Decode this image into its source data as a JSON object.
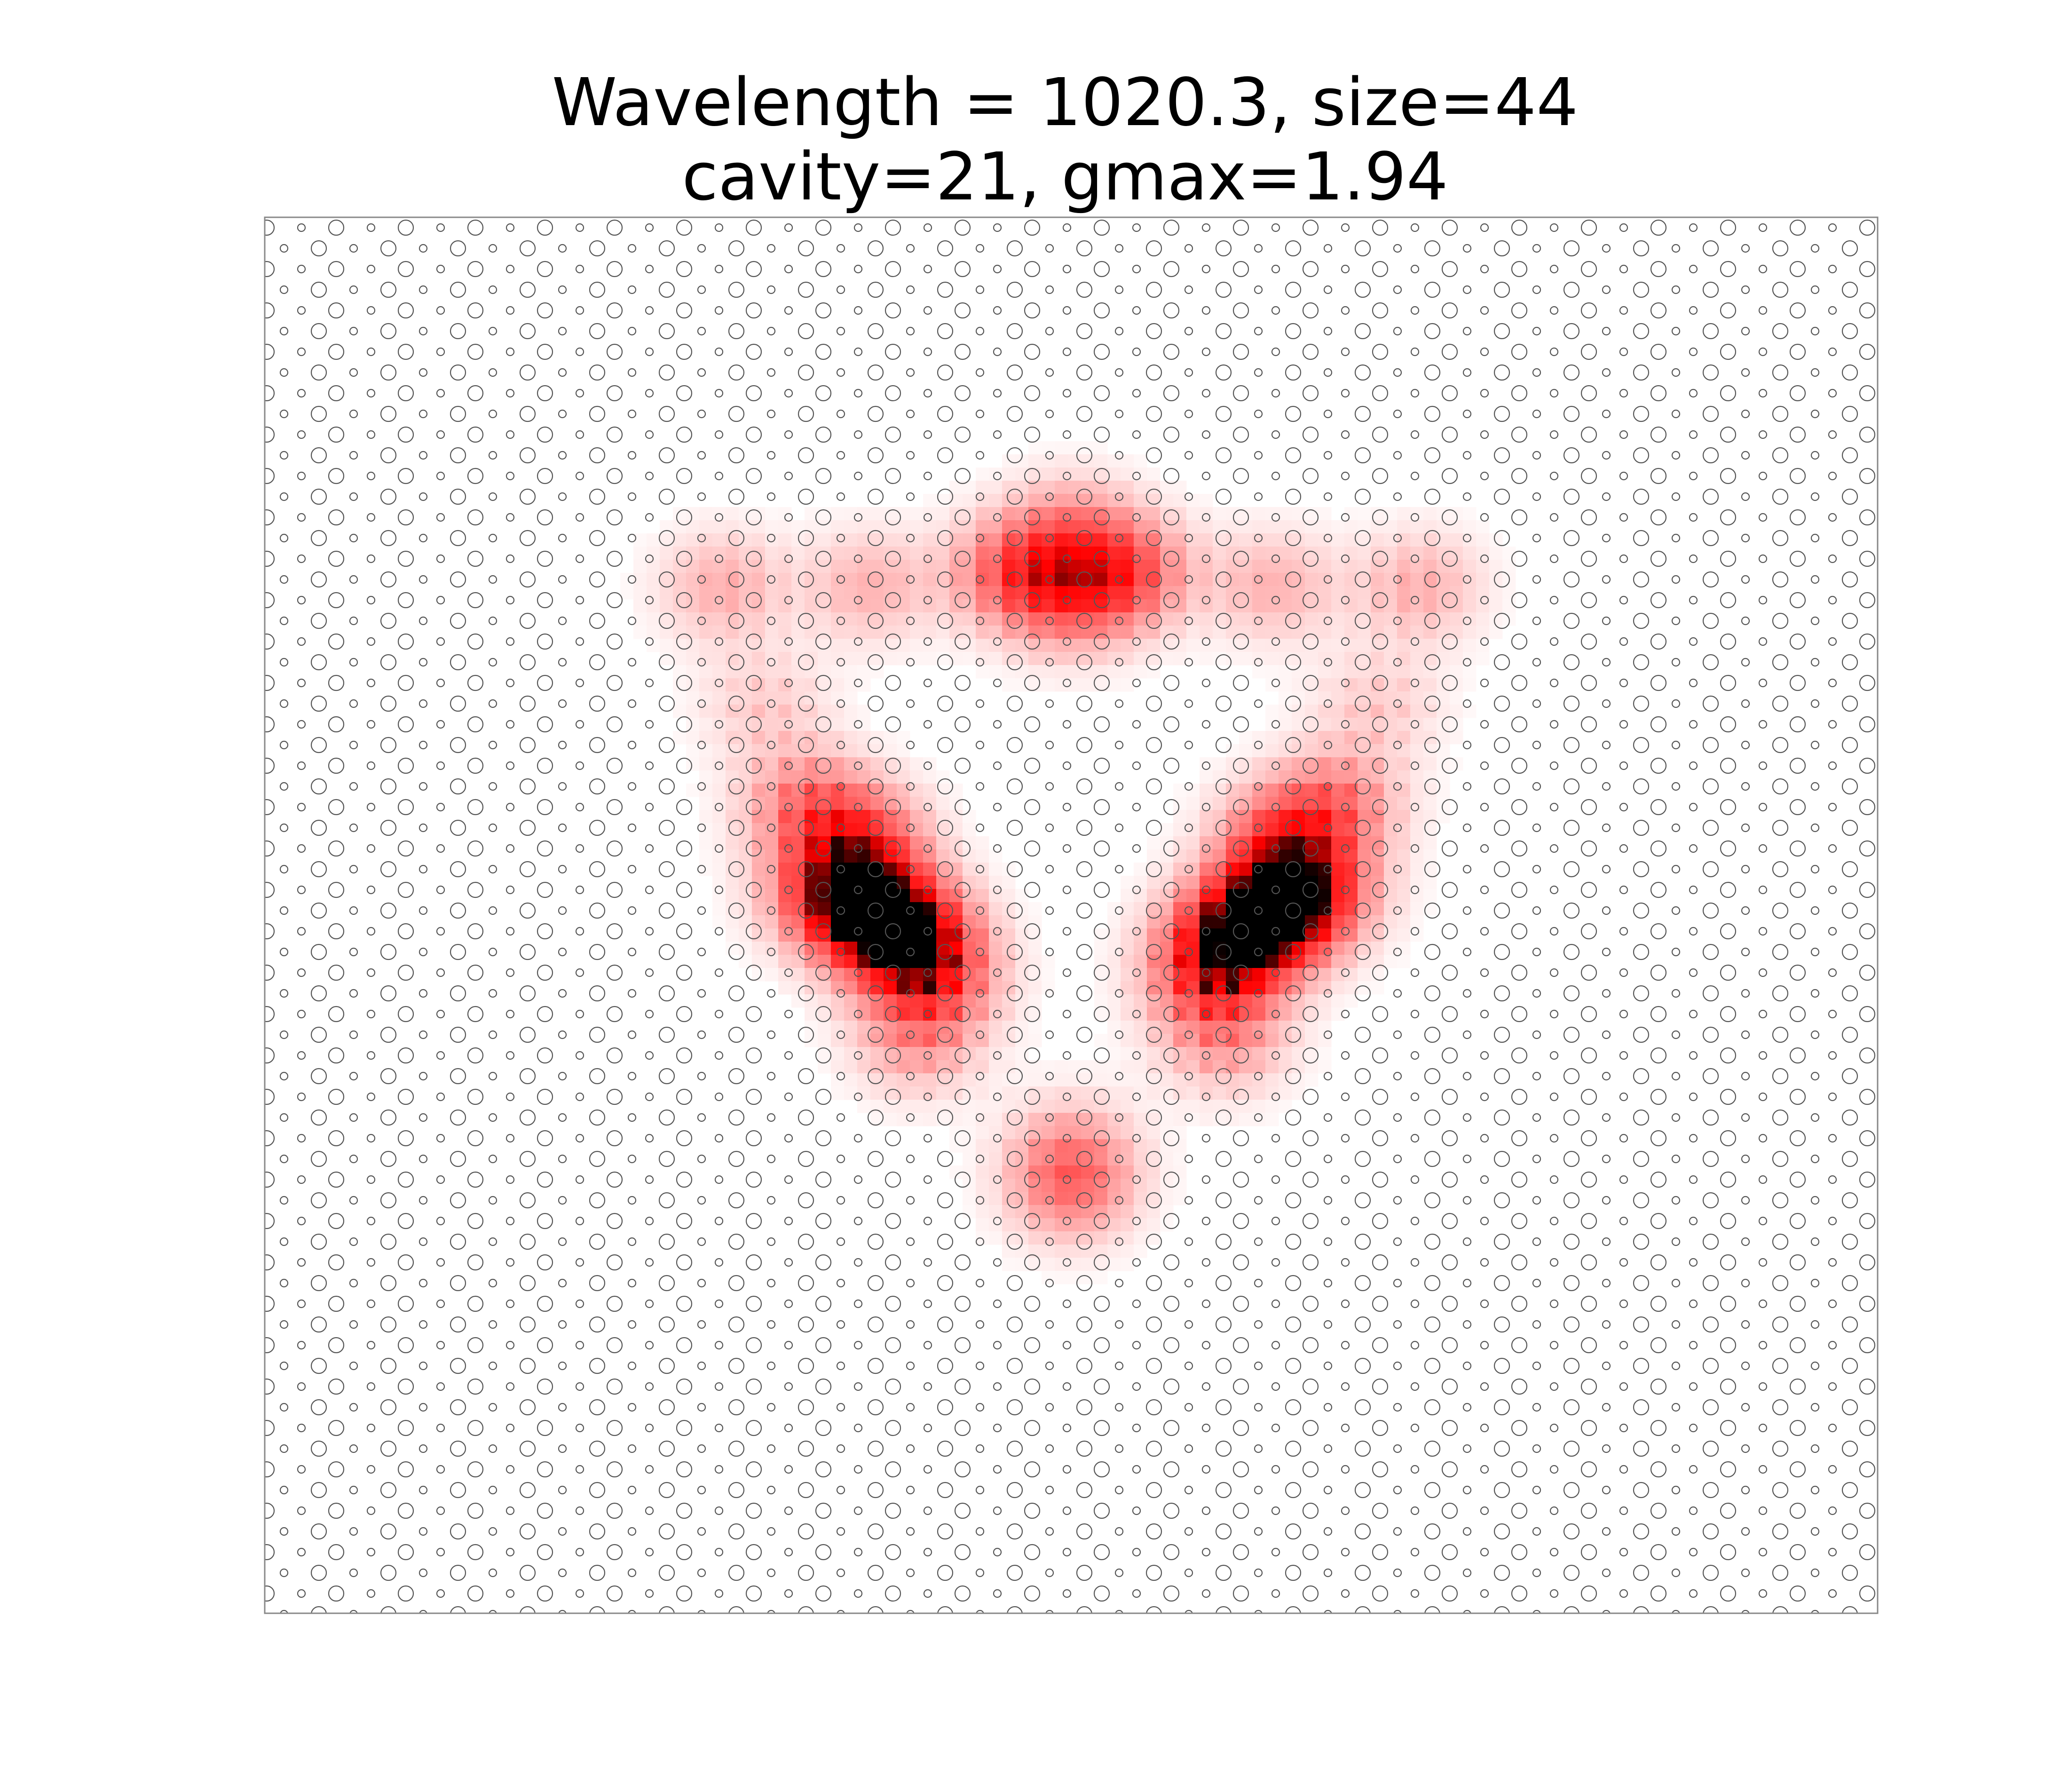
{
  "figure": {
    "title_line1": "Wavelength = 1020.3, size=44",
    "title_line2": "cavity=21, gmax=1.94"
  },
  "chart_data": {
    "type": "heatmap",
    "title": "Wavelength = 1020.3, size=44\ncavity=21, gmax=1.94",
    "xlabel": "",
    "ylabel": "",
    "axes_visible": false,
    "grid": false,
    "legend": "none",
    "colormap": "white-red-black",
    "background_overlay": "lattice of alternating large and small circular holes",
    "hole_edge_color": "#555555",
    "frame_color": "#888888",
    "intensity_color_low": "#ffffff",
    "intensity_color_mid": "#ff0000",
    "intensity_color_high": "#000000",
    "hotspots": [
      {
        "x": 0.37,
        "y": 0.495,
        "v": 1.0
      },
      {
        "x": 0.4,
        "y": 0.515,
        "v": 0.9
      },
      {
        "x": 0.63,
        "y": 0.495,
        "v": 1.0
      },
      {
        "x": 0.6,
        "y": 0.515,
        "v": 0.9
      },
      {
        "x": 0.37,
        "y": 0.445,
        "v": 0.55
      },
      {
        "x": 0.63,
        "y": 0.445,
        "v": 0.55
      },
      {
        "x": 0.335,
        "y": 0.42,
        "v": 0.45
      },
      {
        "x": 0.665,
        "y": 0.42,
        "v": 0.45
      },
      {
        "x": 0.415,
        "y": 0.545,
        "v": 0.55
      },
      {
        "x": 0.585,
        "y": 0.545,
        "v": 0.55
      },
      {
        "x": 0.345,
        "y": 0.48,
        "v": 0.4
      },
      {
        "x": 0.655,
        "y": 0.48,
        "v": 0.4
      },
      {
        "x": 0.405,
        "y": 0.59,
        "v": 0.35
      },
      {
        "x": 0.595,
        "y": 0.59,
        "v": 0.35
      },
      {
        "x": 0.465,
        "y": 0.255,
        "v": 0.6
      },
      {
        "x": 0.535,
        "y": 0.255,
        "v": 0.6
      },
      {
        "x": 0.5,
        "y": 0.225,
        "v": 0.35
      },
      {
        "x": 0.5,
        "y": 0.275,
        "v": 0.4
      },
      {
        "x": 0.285,
        "y": 0.265,
        "v": 0.3
      },
      {
        "x": 0.715,
        "y": 0.265,
        "v": 0.3
      },
      {
        "x": 0.375,
        "y": 0.265,
        "v": 0.28
      },
      {
        "x": 0.625,
        "y": 0.265,
        "v": 0.28
      },
      {
        "x": 0.5,
        "y": 0.695,
        "v": 0.45
      },
      {
        "x": 0.5,
        "y": 0.665,
        "v": 0.25
      },
      {
        "x": 0.31,
        "y": 0.35,
        "v": 0.2
      },
      {
        "x": 0.69,
        "y": 0.35,
        "v": 0.2
      }
    ]
  }
}
